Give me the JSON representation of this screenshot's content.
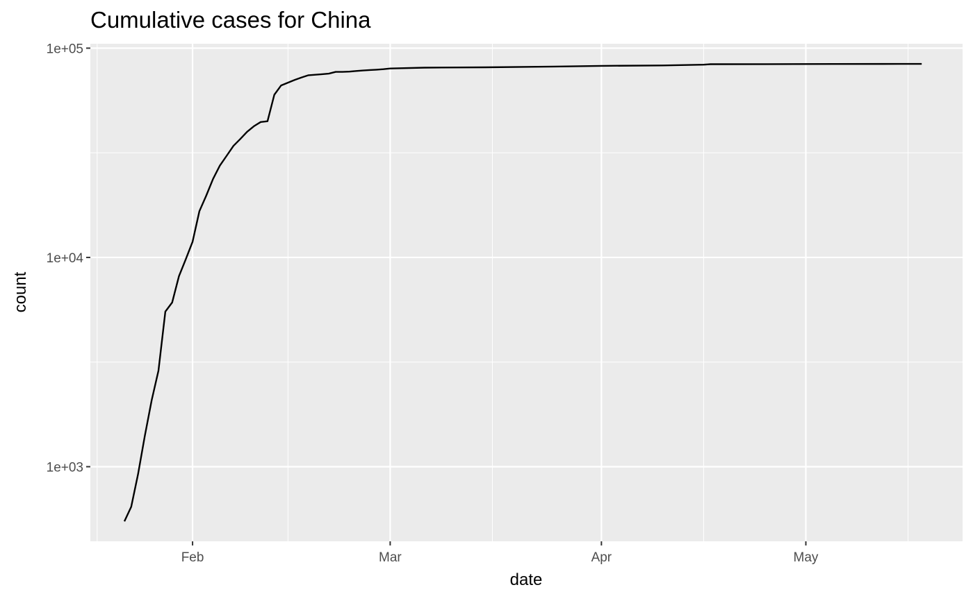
{
  "chart_data": {
    "type": "line",
    "title": "Cumulative cases for China",
    "xlabel": "date",
    "ylabel": "count",
    "y_scale": "log10",
    "grid": true,
    "legend": "none",
    "colors": {
      "panel_background": "#ebebeb",
      "grid_major": "#ffffff",
      "line": "#000000",
      "tick_text": "#4d4d4d"
    },
    "xlim": [
      "2020-01-17",
      "2020-05-24"
    ],
    "ylim": [
      440,
      105000
    ],
    "x_ticks": [
      {
        "date": "2020-02-01",
        "label": "Feb"
      },
      {
        "date": "2020-03-01",
        "label": "Mar"
      },
      {
        "date": "2020-04-01",
        "label": "Apr"
      },
      {
        "date": "2020-05-01",
        "label": "May"
      }
    ],
    "x_minor_ticks": [
      "2020-01-18",
      "2020-02-15",
      "2020-03-16",
      "2020-04-16",
      "2020-05-16"
    ],
    "y_ticks": [
      {
        "value": 1000,
        "label": "1e+03"
      },
      {
        "value": 10000,
        "label": "1e+04"
      },
      {
        "value": 100000,
        "label": "1e+05"
      }
    ],
    "y_minor_ticks": [
      3162,
      31623
    ],
    "series": [
      {
        "x": [
          "2020-01-22",
          "2020-01-23",
          "2020-01-24",
          "2020-01-25",
          "2020-01-26",
          "2020-01-27",
          "2020-01-28",
          "2020-01-29",
          "2020-01-30",
          "2020-01-31",
          "2020-02-01",
          "2020-02-02",
          "2020-02-03",
          "2020-02-04",
          "2020-02-05",
          "2020-02-06",
          "2020-02-07",
          "2020-02-08",
          "2020-02-09",
          "2020-02-10",
          "2020-02-11",
          "2020-02-12",
          "2020-02-13",
          "2020-02-14",
          "2020-02-15",
          "2020-02-16",
          "2020-02-17",
          "2020-02-18",
          "2020-02-19",
          "2020-02-20",
          "2020-02-21",
          "2020-02-22",
          "2020-02-23",
          "2020-02-24",
          "2020-02-25",
          "2020-02-26",
          "2020-02-27",
          "2020-02-28",
          "2020-02-29",
          "2020-03-01",
          "2020-03-06",
          "2020-03-15",
          "2020-03-25",
          "2020-04-01",
          "2020-04-10",
          "2020-04-16",
          "2020-04-17",
          "2020-04-25",
          "2020-05-05",
          "2020-05-15",
          "2020-05-18"
        ],
        "values": [
          548,
          643,
          920,
          1406,
          2075,
          2877,
          5509,
          6087,
          8141,
          9802,
          11891,
          16630,
          19716,
          23707,
          27440,
          30587,
          34110,
          36814,
          39829,
          42354,
          44386,
          44759,
          59895,
          66358,
          68413,
          70513,
          72434,
          74211,
          74619,
          75077,
          75550,
          77001,
          77022,
          77241,
          77754,
          78166,
          78600,
          78928,
          79356,
          79932,
          80700,
          81000,
          81700,
          82300,
          82700,
          83400,
          83800,
          83900,
          84000,
          84050,
          84100
        ]
      }
    ]
  }
}
